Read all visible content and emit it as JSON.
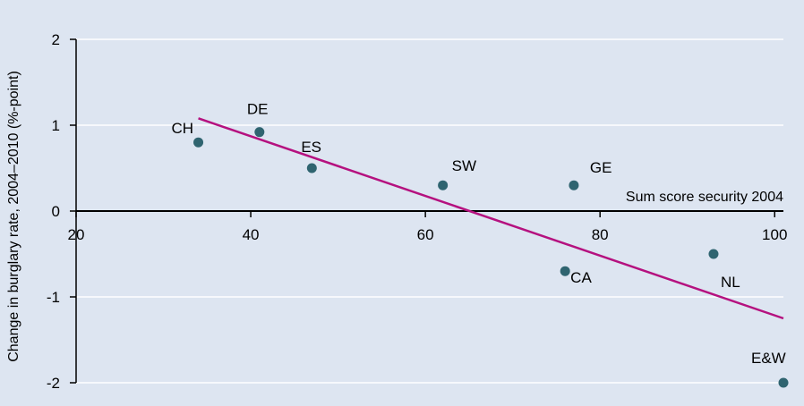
{
  "chart_data": {
    "type": "scatter",
    "ylabel": "Change in burglary rate, 2004–2010 (%-point)",
    "xlabel": "Sum score security 2004",
    "xlim": [
      20,
      101
    ],
    "ylim": [
      -2,
      2
    ],
    "x_ticks": [
      "20",
      "40",
      "60",
      "80",
      "100"
    ],
    "y_ticks": [
      "2",
      "1",
      "0",
      "-1",
      "-2"
    ],
    "grid": "horizontal",
    "colors": {
      "background": "#dde5f1",
      "points": "#2f6470",
      "trend": "#b5117f",
      "grid": "#ffffff"
    },
    "points": [
      {
        "label": "CH",
        "x": 34,
        "y": 0.8
      },
      {
        "label": "DE",
        "x": 41,
        "y": 0.92
      },
      {
        "label": "ES",
        "x": 47,
        "y": 0.5
      },
      {
        "label": "SW",
        "x": 62,
        "y": 0.3
      },
      {
        "label": "GE",
        "x": 77,
        "y": 0.3
      },
      {
        "label": "CA",
        "x": 76,
        "y": -0.7
      },
      {
        "label": "NL",
        "x": 93,
        "y": -0.5
      },
      {
        "label": "E&W",
        "x": 101,
        "y": -2
      }
    ],
    "trendline": {
      "x": [
        34,
        101
      ],
      "y": [
        1.08,
        -1.25
      ]
    }
  }
}
